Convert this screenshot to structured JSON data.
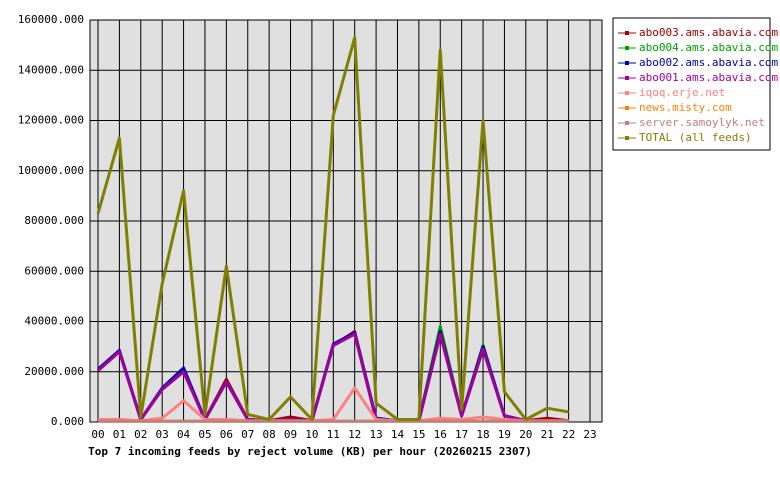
{
  "chart_data": {
    "type": "line",
    "title": "Top 7 incoming feeds by reject volume (KB) per hour (20260215 2307)",
    "categories": [
      "00",
      "01",
      "02",
      "03",
      "04",
      "05",
      "06",
      "07",
      "08",
      "09",
      "10",
      "11",
      "12",
      "13",
      "14",
      "15",
      "16",
      "17",
      "18",
      "19",
      "20",
      "21",
      "22",
      "23"
    ],
    "ylim": [
      0,
      160000
    ],
    "yticks": [
      {
        "value": 0,
        "label": "0.000"
      },
      {
        "value": 20000,
        "label": "20000.000"
      },
      {
        "value": 40000,
        "label": "40000.000"
      },
      {
        "value": 60000,
        "label": "60000.000"
      },
      {
        "value": 80000,
        "label": "80000.000"
      },
      {
        "value": 100000,
        "label": "100000.000"
      },
      {
        "value": 120000,
        "label": "120000.000"
      },
      {
        "value": 140000,
        "label": "140000.000"
      },
      {
        "value": 160000,
        "label": "160000.000"
      }
    ],
    "grid": true,
    "series": [
      {
        "name": "abo003.ams.abavia.com",
        "color": "#a00000",
        "values": [
          20500,
          28000,
          1000,
          13000,
          20000,
          1000,
          17000,
          1000,
          500,
          2000,
          500,
          30500,
          36000,
          1000,
          500,
          500,
          35000,
          2500,
          29000,
          2500,
          500,
          1500,
          500,
          null
        ]
      },
      {
        "name": "abo004.ams.abavia.com",
        "color": "#00a000",
        "values": [
          20500,
          28000,
          1000,
          13000,
          20500,
          1000,
          16000,
          1000,
          500,
          1000,
          500,
          30500,
          35000,
          1000,
          500,
          500,
          38000,
          2500,
          30500,
          2500,
          500,
          500,
          500,
          null
        ]
      },
      {
        "name": "abo002.ams.abavia.com",
        "color": "#0000a0",
        "values": [
          21000,
          28500,
          1000,
          13500,
          21500,
          1000,
          16000,
          1000,
          500,
          1000,
          500,
          31000,
          35500,
          1500,
          500,
          500,
          36000,
          2500,
          30000,
          2500,
          500,
          500,
          500,
          null
        ]
      },
      {
        "name": "abo001.ams.abavia.com",
        "color": "#a000a0",
        "values": [
          20500,
          28000,
          1000,
          13000,
          20000,
          1000,
          16000,
          1000,
          500,
          1000,
          500,
          30500,
          35000,
          1000,
          500,
          500,
          35000,
          2500,
          29000,
          2500,
          500,
          500,
          500,
          null
        ]
      },
      {
        "name": "iqoq.erje.net",
        "color": "#ff8080",
        "values": [
          1000,
          1000,
          500,
          1500,
          8500,
          1000,
          1000,
          500,
          500,
          500,
          500,
          1000,
          13500,
          1000,
          500,
          500,
          1500,
          1000,
          2000,
          1000,
          500,
          500,
          500,
          null
        ]
      },
      {
        "name": "news.misty.com",
        "color": "#ff8000",
        "values": [
          300,
          300,
          300,
          300,
          300,
          300,
          300,
          300,
          300,
          300,
          300,
          300,
          300,
          300,
          300,
          300,
          300,
          300,
          300,
          300,
          300,
          300,
          300,
          null
        ]
      },
      {
        "name": "server.samoylyk.net",
        "color": "#c08080",
        "values": [
          300,
          300,
          300,
          300,
          300,
          300,
          300,
          300,
          300,
          300,
          300,
          300,
          300,
          300,
          300,
          300,
          300,
          300,
          300,
          300,
          300,
          300,
          300,
          null
        ]
      },
      {
        "name": "TOTAL (all feeds)",
        "color": "#808000",
        "values": [
          83000,
          113000,
          2000,
          55000,
          92000,
          3000,
          62000,
          3000,
          1000,
          10000,
          1000,
          122000,
          153000,
          7500,
          1000,
          1000,
          148000,
          5000,
          120000,
          12000,
          1000,
          5500,
          4000,
          null
        ]
      }
    ]
  }
}
